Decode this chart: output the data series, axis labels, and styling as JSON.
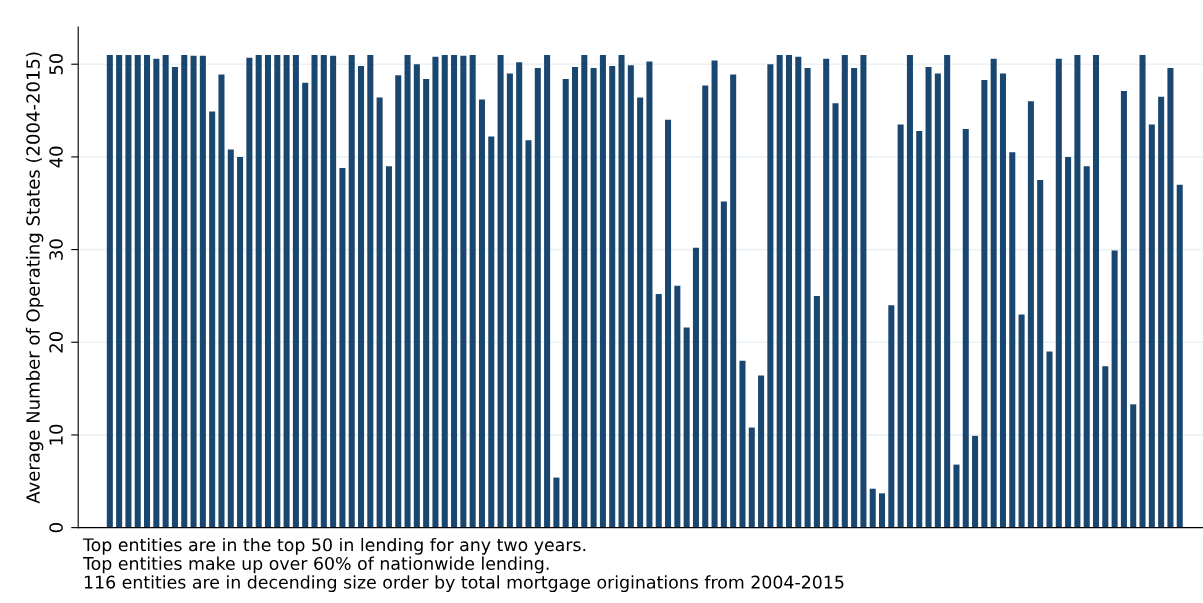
{
  "chart_data": {
    "type": "bar",
    "ylabel": "Average Number of Operating States (2004-2015)",
    "categories": [
      null,
      null,
      null,
      null,
      null,
      null,
      null,
      null,
      null,
      null,
      null,
      null,
      null,
      null,
      null,
      null,
      null,
      null,
      null,
      null,
      null,
      null,
      null,
      null,
      null,
      null,
      null,
      null,
      null,
      null,
      null,
      null,
      null,
      null,
      null,
      null,
      null,
      null,
      null,
      null,
      null,
      null,
      null,
      null,
      null,
      null,
      null,
      null,
      null,
      null,
      null,
      null,
      null,
      null,
      null,
      null,
      null,
      null,
      null,
      null,
      null,
      null,
      null,
      null,
      null,
      null,
      null,
      null,
      null,
      null,
      null,
      null,
      null,
      null,
      null,
      null,
      null,
      null,
      null,
      null,
      null,
      null,
      null,
      null,
      null,
      null,
      null,
      null,
      null,
      null,
      null,
      null,
      null,
      null,
      null,
      null,
      null,
      null,
      null,
      null,
      null,
      null,
      null,
      null,
      null,
      null,
      null,
      null,
      null,
      null,
      null,
      null,
      null,
      null,
      null,
      null
    ],
    "values": [
      51,
      51,
      51,
      51,
      51,
      50.6,
      51,
      49.7,
      51,
      50.9,
      50.9,
      44.9,
      48.9,
      40.8,
      40,
      50.7,
      51,
      51,
      51,
      51,
      51,
      48,
      51,
      51,
      50.9,
      38.8,
      51,
      49.8,
      51,
      46.4,
      39,
      48.8,
      51,
      50,
      48.4,
      50.8,
      51,
      51,
      50.9,
      51,
      46.2,
      42.2,
      51,
      49,
      50.2,
      41.8,
      49.6,
      51,
      5.4,
      48.4,
      49.7,
      51,
      49.6,
      51,
      49.8,
      51,
      49.9,
      46.4,
      50.3,
      25.2,
      44,
      26.1,
      21.6,
      30.2,
      47.7,
      50.4,
      35.2,
      48.9,
      18,
      10.8,
      16.4,
      50,
      51,
      51,
      50.8,
      49.6,
      25,
      50.6,
      45.8,
      51,
      49.6,
      51,
      4.2,
      3.7,
      24,
      43.5,
      51,
      42.8,
      49.7,
      49,
      51,
      6.8,
      43,
      9.9,
      48.3,
      50.6,
      49,
      40.5,
      23,
      46,
      37.5,
      19,
      50.6,
      40,
      51,
      39,
      51,
      17.4,
      29.9,
      47.1,
      13.3,
      51,
      43.5,
      46.5,
      49.6,
      37
    ],
    "color": "#1a476f",
    "ylim": [
      0,
      54
    ],
    "yticks": [
      0,
      10,
      20,
      30,
      40,
      50
    ],
    "grid": "y",
    "annotations": [
      "Top entities are in the top 50 in lending for any two years.",
      "Top entities make up over 60% of nationwide lending.",
      "116 entities are in decending size order by total mortgage originations from 2004-2015"
    ]
  }
}
